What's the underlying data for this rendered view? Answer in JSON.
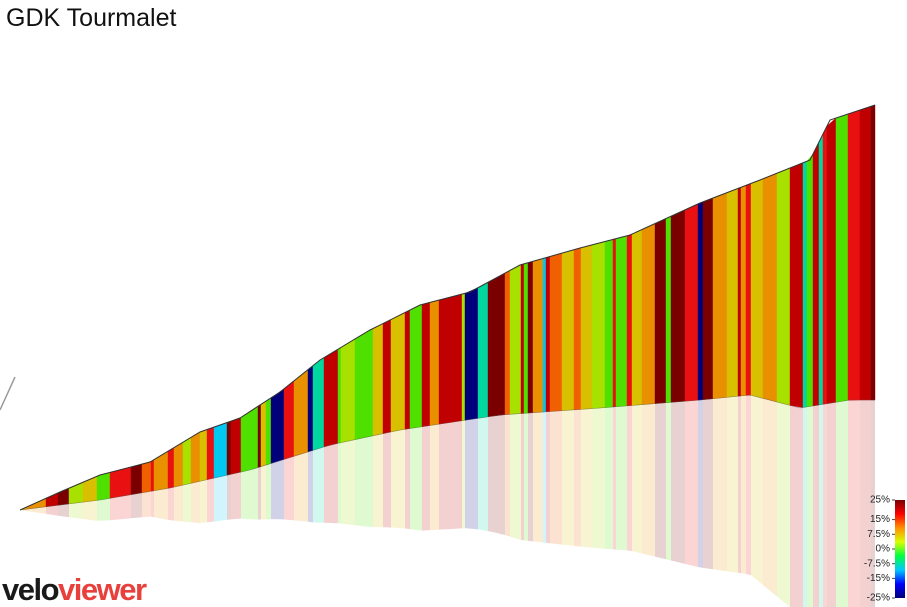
{
  "chart_data": {
    "type": "elevation-profile",
    "title": "GDK Tourmalet",
    "colorbar": {
      "lim": [
        -25,
        25
      ],
      "colors": [
        "#00007a",
        "#0000ff",
        "#00c8ff",
        "#00ff40",
        "#d8ff00",
        "#ff9000",
        "#ff0000",
        "#7a0000"
      ],
      "ticks": [
        {
          "value": 25,
          "label": "25%"
        },
        {
          "value": 15,
          "label": "15%"
        },
        {
          "value": 7.5,
          "label": "7.5%"
        },
        {
          "value": 0,
          "label": "0%"
        },
        {
          "value": -7.5,
          "label": "-7.5%"
        },
        {
          "value": -15,
          "label": "-15%"
        },
        {
          "value": -25,
          "label": "-25%"
        }
      ]
    },
    "logo": {
      "part1": "velo",
      "part2": "viewer"
    }
  }
}
